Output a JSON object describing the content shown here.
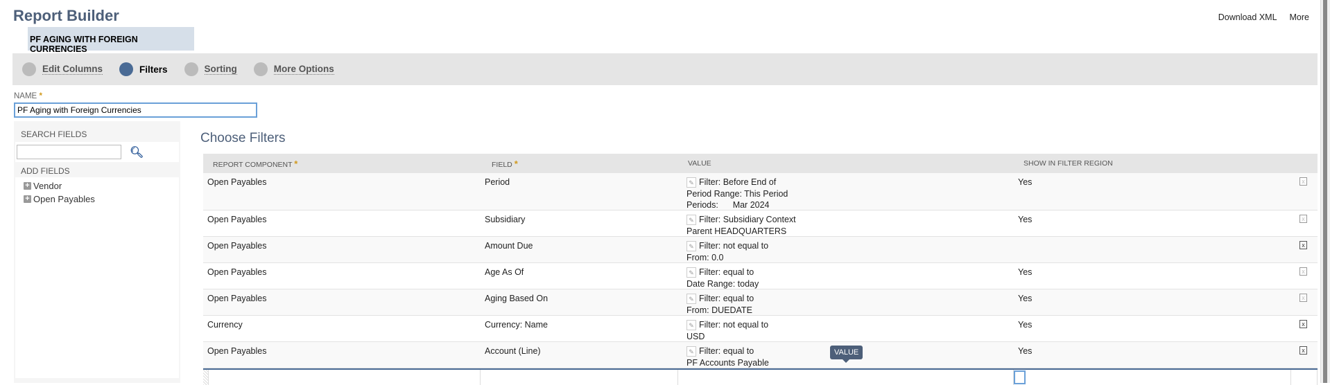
{
  "header": {
    "title": "Report Builder",
    "report_name": "PF AGING WITH FOREIGN CURRENCIES",
    "links": [
      "Download XML",
      "More"
    ]
  },
  "steps": [
    {
      "label": "Edit Columns",
      "active": false
    },
    {
      "label": "Filters",
      "active": true
    },
    {
      "label": "Sorting",
      "active": false
    },
    {
      "label": "More Options",
      "active": false
    }
  ],
  "name_field": {
    "label": "NAME",
    "required": "*",
    "value": "PF Aging with Foreign Currencies"
  },
  "left_panel": {
    "search_label": "SEARCH FIELDS",
    "search_value": "",
    "add_fields_label": "ADD FIELDS",
    "fields": [
      "Vendor",
      "Open Payables"
    ]
  },
  "main": {
    "title": "Choose Filters",
    "columns": [
      "REPORT COMPONENT",
      "FIELD",
      "VALUE",
      "SHOW IN FILTER REGION"
    ],
    "required": "*",
    "rows": [
      {
        "component": "Open Payables",
        "field": "Period",
        "value": [
          "Filter: Before End of",
          "Period Range: This Period",
          "Periods:      Mar 2024"
        ],
        "show": "Yes",
        "checked": false
      },
      {
        "component": "Open Payables",
        "field": "Subsidiary",
        "value": [
          "Filter: Subsidiary Context",
          "Parent HEADQUARTERS"
        ],
        "show": "Yes",
        "checked": false
      },
      {
        "component": "Open Payables",
        "field": "Amount Due",
        "value": [
          "Filter: not equal to",
          "From: 0.0"
        ],
        "show": "",
        "checked": true
      },
      {
        "component": "Open Payables",
        "field": "Age As Of",
        "value": [
          "Filter: equal to",
          "Date Range: today"
        ],
        "show": "Yes",
        "checked": false
      },
      {
        "component": "Open Payables",
        "field": "Aging Based On",
        "value": [
          "Filter: equal to",
          "From: DUEDATE"
        ],
        "show": "Yes",
        "checked": false
      },
      {
        "component": "Currency",
        "field": "Currency: Name",
        "value": [
          "Filter: not equal to",
          "USD"
        ],
        "show": "Yes",
        "checked": true
      },
      {
        "component": "Open Payables",
        "field": "Account (Line)",
        "value": [
          "Filter: equal to",
          "PF Accounts Payable"
        ],
        "show": "Yes",
        "checked": true
      }
    ],
    "tooltip": "VALUE"
  }
}
